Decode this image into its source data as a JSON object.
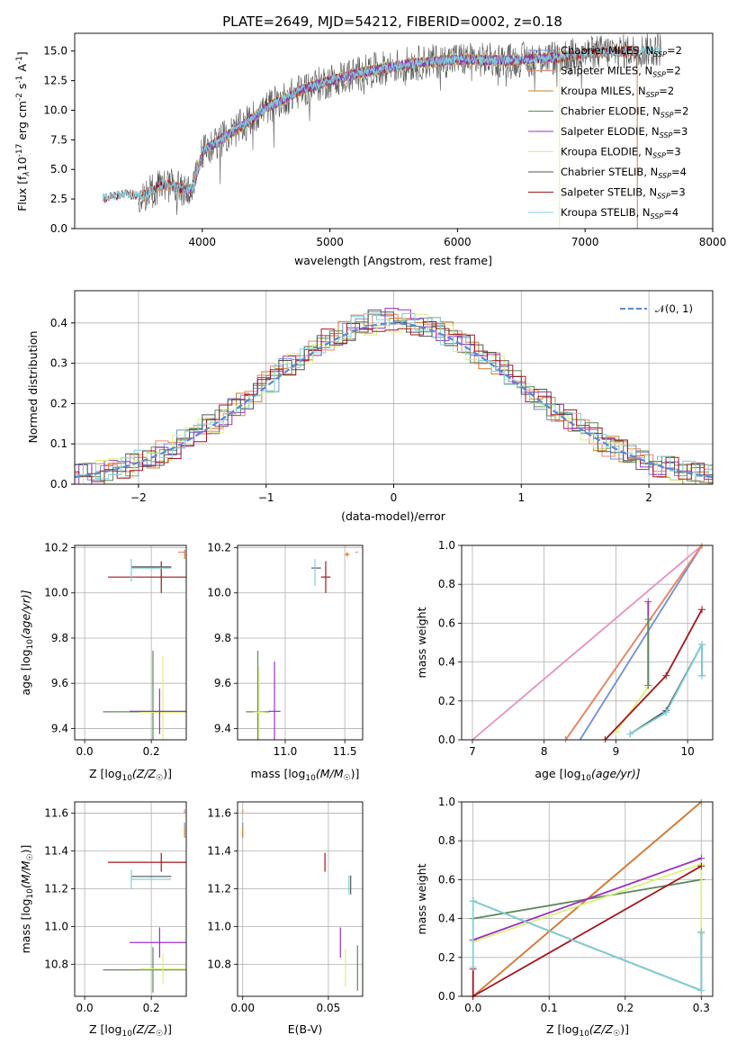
{
  "colors": {
    "chabrier_miles": "#6f8fd9",
    "salpeter_miles": "#e8866b",
    "kroupa_miles": "#d2792a",
    "chabrier_elodie": "#5c8a5c",
    "salpeter_elodie": "#9b30c0",
    "kroupa_elodie": "#d8f27a",
    "chabrier_stelib": "#555555",
    "salpeter_stelib": "#a5151b",
    "kroupa_stelib": "#7fd0d8",
    "pink": "#e690c0",
    "normal": "#5b87d6"
  },
  "chart_data": [
    {
      "id": "spectrum",
      "type": "line",
      "title": "PLATE=2649, MJD=54212, FIBERID=0002, z=0.18",
      "xlabel": "wavelength [Angstrom, rest frame]",
      "ylabel_main": "Flux [f",
      "ylabel_sub": "λ",
      "ylabel_rest": "10",
      "ylabel_sup": "-17",
      "ylabel_tail": " erg cm",
      "ylabel_sup2": "-2",
      "ylabel_mid": " s",
      "ylabel_sup3": "-1",
      "ylabel_end": " A",
      "ylabel_sup4": "-1",
      "ylabel_close": "]",
      "xlim": [
        3000,
        8000
      ],
      "ylim": [
        0,
        16.5
      ],
      "xticks": [
        "4000",
        "5000",
        "6000",
        "7000",
        "8000"
      ],
      "yticks": [
        "0.0",
        "2.5",
        "5.0",
        "7.5",
        "10.0",
        "12.5",
        "15.0"
      ],
      "legend_position": "top-right",
      "legend": [
        {
          "pre": "Chabrier MILES, N",
          "sub": "SSP",
          "post": "=2"
        },
        {
          "pre": "Salpeter MILES, N",
          "sub": "SSP",
          "post": "=2"
        },
        {
          "pre": "Kroupa MILES, N",
          "sub": "SSP",
          "post": "=2"
        },
        {
          "pre": "Chabrier ELODIE, N",
          "sub": "SSP",
          "post": "=2"
        },
        {
          "pre": "Salpeter ELODIE, N",
          "sub": "SSP",
          "post": "=3"
        },
        {
          "pre": "Kroupa ELODIE, N",
          "sub": "SSP",
          "post": "=3"
        },
        {
          "pre": "Chabrier STELIB, N",
          "sub": "SSP",
          "post": "=4"
        },
        {
          "pre": "Salpeter STELIB, N",
          "sub": "SSP",
          "post": "=3"
        },
        {
          "pre": "Kroupa STELIB, N",
          "sub": "SSP",
          "post": "=4"
        }
      ],
      "continuum": [
        [
          3220,
          2.6
        ],
        [
          3400,
          2.9
        ],
        [
          3550,
          2.8
        ],
        [
          3700,
          3.8
        ],
        [
          3860,
          3.3
        ],
        [
          3930,
          3.4
        ],
        [
          4000,
          6.5
        ],
        [
          4300,
          8.6
        ],
        [
          4500,
          10.2
        ],
        [
          4800,
          11.8
        ],
        [
          5000,
          12.5
        ],
        [
          5300,
          13.3
        ],
        [
          5600,
          13.9
        ],
        [
          6000,
          14.3
        ],
        [
          6400,
          14.2
        ],
        [
          6800,
          14.5
        ],
        [
          7100,
          14.9
        ],
        [
          7400,
          15.0
        ],
        [
          7600,
          15.2
        ]
      ]
    },
    {
      "id": "residuals",
      "type": "histogram",
      "xlabel": "(data-model)/error",
      "ylabel": "Normed distribution",
      "xlim": [
        -2.5,
        2.5
      ],
      "ylim": [
        0,
        0.48
      ],
      "xticks": [
        "−2",
        "−1",
        "0",
        "1",
        "2"
      ],
      "yticks": [
        "0.0",
        "0.1",
        "0.2",
        "0.3",
        "0.4"
      ],
      "legend": "𝒩(0, 1)",
      "legend_position": "top-right"
    },
    {
      "id": "age_vs_Z",
      "type": "errorbar",
      "xlabel": "Z [log",
      "xlabel_sub": "10",
      "xlabel_rest": "(Z/Z",
      "xlabel_sub2": "☉",
      "xlabel_close": ")]",
      "ylabel": "age  [log",
      "ylabel_sub": "10",
      "ylabel_rest": "(age/yr)]",
      "xlim": [
        -0.03,
        0.305
      ],
      "ylim": [
        9.35,
        10.21
      ],
      "xticks": [
        "0.0",
        "0.2"
      ],
      "yticks": [
        "9.4",
        "9.6",
        "9.8",
        "10.0",
        "10.2"
      ],
      "points": [
        {
          "series": "salpeter_stelib",
          "x": 0.23,
          "xerr": 0.16,
          "y": 10.07,
          "yerr": 0.07
        },
        {
          "series": "chabrier_stelib",
          "x": 0.2,
          "xerr": 0.06,
          "y": 10.115,
          "yerr": 0.0
        },
        {
          "series": "kroupa_stelib",
          "x": 0.2,
          "xerr": 0.06,
          "y": 10.11,
          "yerr": 0.0
        },
        {
          "series": "kroupa_stelib",
          "x": 0.14,
          "xerr": 0.0,
          "y": 10.1,
          "yerr": 0.05
        },
        {
          "series": "chabrier_elodie",
          "x": 0.205,
          "xerr": 0.15,
          "y": 9.474,
          "yerr": 0.27
        },
        {
          "series": "kroupa_elodie",
          "x": 0.235,
          "xerr": 0.07,
          "y": 9.472,
          "yerr": 0.25
        },
        {
          "series": "salpeter_elodie",
          "x": 0.225,
          "xerr": 0.09,
          "y": 9.476,
          "yerr": 0.1
        },
        {
          "series": "kroupa_miles",
          "x": 0.3,
          "xerr": 0.0,
          "y": 10.17,
          "yerr": 0.02
        },
        {
          "series": "salpeter_miles",
          "x": 0.29,
          "xerr": 0.01,
          "y": 10.18,
          "yerr": 0.0
        }
      ]
    },
    {
      "id": "age_vs_mass",
      "type": "errorbar",
      "xlabel": "mass [log",
      "xlabel_sub": "10",
      "xlabel_rest": "(M/M",
      "xlabel_sub2": "☉",
      "xlabel_close": ")]",
      "xlim": [
        10.6,
        11.65
      ],
      "ylim": [
        9.35,
        10.21
      ],
      "xticks": [
        "11.0",
        "11.5"
      ],
      "yticks": [
        "9.4",
        "9.6",
        "9.8",
        "10.0",
        "10.2"
      ],
      "points": [
        {
          "series": "salpeter_stelib",
          "x": 11.34,
          "xerr": 0.04,
          "y": 10.07,
          "yerr": 0.07
        },
        {
          "series": "chabrier_stelib",
          "x": 11.26,
          "xerr": 0.04,
          "y": 10.11,
          "yerr": 0.0
        },
        {
          "series": "kroupa_stelib",
          "x": 11.25,
          "xerr": 0.0,
          "y": 10.09,
          "yerr": 0.06
        },
        {
          "series": "chabrier_elodie",
          "x": 10.77,
          "xerr": 0.1,
          "y": 9.474,
          "yerr": 0.27
        },
        {
          "series": "kroupa_elodie",
          "x": 10.78,
          "xerr": 0.05,
          "y": 9.472,
          "yerr": 0.2
        },
        {
          "series": "salpeter_elodie",
          "x": 10.91,
          "xerr": 0.05,
          "y": 9.476,
          "yerr": 0.22
        },
        {
          "series": "kroupa_miles",
          "x": 11.52,
          "xerr": 0.02,
          "y": 10.17,
          "yerr": 0.01
        },
        {
          "series": "salpeter_miles",
          "x": 11.6,
          "xerr": 0.01,
          "y": 10.18,
          "yerr": 0.0
        }
      ]
    },
    {
      "id": "massweight_vs_age",
      "type": "line",
      "xlabel": "age  [log",
      "xlabel_sub": "10",
      "xlabel_rest": "(age/yr)]",
      "ylabel": "mass weight",
      "xlim": [
        6.85,
        10.35
      ],
      "ylim": [
        0,
        1.0
      ],
      "xticks": [
        "7",
        "8",
        "9",
        "10"
      ],
      "yticks": [
        "0.0",
        "0.2",
        "0.4",
        "0.6",
        "0.8",
        "1.0"
      ],
      "series": [
        {
          "key": "pink",
          "x": [
            7.0,
            10.2
          ],
          "y": [
            0.0,
            1.0
          ]
        },
        {
          "key": "chabrier_miles",
          "x": [
            8.5,
            10.2
          ],
          "y": [
            0.0,
            1.0
          ]
        },
        {
          "key": "kroupa_miles",
          "x": [
            8.3,
            10.2
          ],
          "y": [
            0.0,
            1.0
          ]
        },
        {
          "key": "salpeter_miles",
          "x": [
            8.3,
            10.2
          ],
          "y": [
            0.0,
            1.0
          ]
        },
        {
          "key": "kroupa_elodie",
          "x": [
            9.0,
            9.45,
            9.45
          ],
          "y": [
            0.04,
            0.27,
            0.7
          ]
        },
        {
          "key": "salpeter_elodie",
          "x": [
            9.45,
            9.45
          ],
          "y": [
            0.28,
            0.71
          ]
        },
        {
          "key": "chabrier_elodie",
          "x": [
            9.45,
            9.45
          ],
          "y": [
            0.28,
            0.62
          ]
        },
        {
          "key": "salpeter_stelib",
          "x": [
            8.85,
            9.7,
            10.2
          ],
          "y": [
            0.0,
            0.33,
            0.67
          ]
        },
        {
          "key": "chabrier_stelib",
          "x": [
            9.2,
            9.7,
            10.2,
            10.2
          ],
          "y": [
            0.03,
            0.15,
            0.49,
            0.33
          ]
        },
        {
          "key": "kroupa_stelib",
          "x": [
            9.2,
            9.7,
            10.2,
            10.2
          ],
          "y": [
            0.03,
            0.14,
            0.49,
            0.33
          ]
        }
      ]
    },
    {
      "id": "mass_vs_Z",
      "type": "errorbar",
      "xlabel": "Z [log",
      "xlabel_sub": "10",
      "xlabel_rest": "(Z/Z",
      "xlabel_sub2": "☉",
      "xlabel_close": ")]",
      "ylabel": "mass [log",
      "ylabel_sub": "10",
      "ylabel_rest": "(M/M",
      "ylabel_sub2": "☉",
      "ylabel_close": ")]",
      "xlim": [
        -0.03,
        0.305
      ],
      "ylim": [
        10.63,
        11.66
      ],
      "xticks": [
        "0.0",
        "0.2"
      ],
      "yticks": [
        "10.8",
        "11.0",
        "11.2",
        "11.4",
        "11.6"
      ],
      "points": [
        {
          "series": "salpeter_stelib",
          "x": 0.23,
          "xerr": 0.16,
          "y": 11.34,
          "yerr": 0.05
        },
        {
          "series": "chabrier_stelib",
          "x": 0.2,
          "xerr": 0.06,
          "y": 11.265,
          "yerr": 0.0
        },
        {
          "series": "kroupa_stelib",
          "x": 0.2,
          "xerr": 0.06,
          "y": 11.25,
          "yerr": 0.0
        },
        {
          "series": "kroupa_stelib",
          "x": 0.14,
          "xerr": 0.0,
          "y": 11.25,
          "yerr": 0.05
        },
        {
          "series": "salpeter_elodie",
          "x": 0.225,
          "xerr": 0.09,
          "y": 10.915,
          "yerr": 0.08
        },
        {
          "series": "chabrier_elodie",
          "x": 0.205,
          "xerr": 0.15,
          "y": 10.77,
          "yerr": 0.12
        },
        {
          "series": "kroupa_elodie",
          "x": 0.235,
          "xerr": 0.07,
          "y": 10.775,
          "yerr": 0.08
        },
        {
          "series": "kroupa_miles",
          "x": 0.3,
          "xerr": 0.0,
          "y": 11.5,
          "yerr": 0.03
        },
        {
          "series": "salpeter_miles",
          "x": 0.3,
          "xerr": 0.0,
          "y": 11.61,
          "yerr": 0.01
        },
        {
          "series": "chabrier_miles",
          "x": 0.3,
          "xerr": 0.0,
          "y": 11.54,
          "yerr": 0.01
        }
      ]
    },
    {
      "id": "mass_vs_ebv",
      "type": "errorbar",
      "xlabel": "E(B-V)",
      "xlim": [
        -0.003,
        0.07
      ],
      "ylim": [
        10.63,
        11.66
      ],
      "xticks": [
        "0.00",
        "0.05"
      ],
      "yticks": [
        "10.8",
        "11.0",
        "11.2",
        "11.4",
        "11.6"
      ],
      "points": [
        {
          "series": "salpeter_stelib",
          "x": 0.048,
          "xerr": 0.0,
          "y": 11.34,
          "yerr": 0.05
        },
        {
          "series": "chabrier_stelib",
          "x": 0.063,
          "xerr": 0.0,
          "y": 11.22,
          "yerr": 0.05
        },
        {
          "series": "kroupa_stelib",
          "x": 0.062,
          "xerr": 0.0,
          "y": 11.22,
          "yerr": 0.05
        },
        {
          "series": "salpeter_elodie",
          "x": 0.057,
          "xerr": 0.0,
          "y": 10.915,
          "yerr": 0.08
        },
        {
          "series": "kroupa_elodie",
          "x": 0.06,
          "xerr": 0.0,
          "y": 10.78,
          "yerr": 0.1
        },
        {
          "series": "chabrier_elodie",
          "x": 0.067,
          "xerr": 0.0,
          "y": 10.78,
          "yerr": 0.12
        },
        {
          "series": "kroupa_miles",
          "x": 0.0,
          "xerr": 0.0,
          "y": 11.5,
          "yerr": 0.03
        },
        {
          "series": "salpeter_miles",
          "x": 0.0,
          "xerr": 0.0,
          "y": 11.61,
          "yerr": 0.01
        },
        {
          "series": "chabrier_miles",
          "x": 0.0,
          "xerr": 0.0,
          "y": 11.54,
          "yerr": 0.01
        }
      ]
    },
    {
      "id": "massweight_vs_Z",
      "type": "line",
      "xlabel": "Z [log",
      "xlabel_sub": "10",
      "xlabel_rest": "(Z/Z",
      "xlabel_sub2": "☉",
      "xlabel_close": ")]",
      "ylabel": "mass weight",
      "xlim": [
        -0.015,
        0.315
      ],
      "ylim": [
        0,
        1.0
      ],
      "xticks": [
        "0.0",
        "0.1",
        "0.2",
        "0.3"
      ],
      "yticks": [
        "0.0",
        "0.2",
        "0.4",
        "0.6",
        "0.8",
        "1.0"
      ],
      "series": [
        {
          "key": "pink",
          "x": [
            0.0,
            0.3
          ],
          "y": [
            0.0,
            1.0
          ]
        },
        {
          "key": "kroupa_miles",
          "x": [
            0.0,
            0.3
          ],
          "y": [
            0.0,
            1.0
          ]
        },
        {
          "key": "chabrier_elodie",
          "x": [
            0.0,
            0.3
          ],
          "y": [
            0.4,
            0.6
          ]
        },
        {
          "key": "salpeter_elodie",
          "x": [
            0.0,
            0.3
          ],
          "y": [
            0.29,
            0.71
          ]
        },
        {
          "key": "kroupa_elodie",
          "x": [
            0.0,
            0.3,
            0.3
          ],
          "y": [
            0.28,
            0.68,
            0.32
          ]
        },
        {
          "key": "salpeter_stelib",
          "x": [
            0.0,
            0.0,
            0.3
          ],
          "y": [
            0.14,
            0.0,
            0.67
          ]
        },
        {
          "key": "chabrier_stelib",
          "x": [
            0.0,
            0.3,
            0.3
          ],
          "y": [
            0.49,
            0.03,
            0.33
          ]
        },
        {
          "key": "kroupa_stelib",
          "x": [
            0.0,
            0.0,
            0.3,
            0.3
          ],
          "y": [
            0.15,
            0.49,
            0.03,
            0.33
          ]
        }
      ]
    }
  ]
}
